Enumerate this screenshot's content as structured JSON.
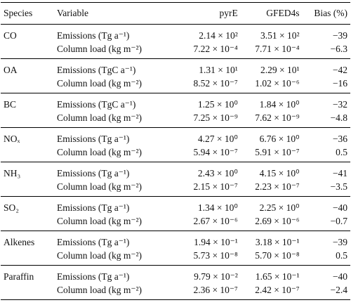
{
  "table": {
    "header": [
      "Species",
      "Variable",
      "pyrE",
      "GFED4s",
      "Bias (%)"
    ],
    "groups": [
      {
        "species": "CO",
        "rows": [
          {
            "variable": "Emissions (Tg a⁻¹)",
            "pyre": "2.14 × 10²",
            "gfed": "3.51 × 10²",
            "bias": "−39"
          },
          {
            "variable": "Column load (kg m⁻²)",
            "pyre": "7.22 × 10⁻⁴",
            "gfed": "7.71 × 10⁻⁴",
            "bias": "−6.3"
          }
        ]
      },
      {
        "species": "OA",
        "rows": [
          {
            "variable": "Emissions (TgC a⁻¹)",
            "pyre": "1.31 × 10¹",
            "gfed": "2.29 × 10¹",
            "bias": "−42"
          },
          {
            "variable": "Column load (kg m⁻²)",
            "pyre": "8.52 × 10⁻⁷",
            "gfed": "1.02 × 10⁻⁶",
            "bias": "−16"
          }
        ]
      },
      {
        "species": "BC",
        "rows": [
          {
            "variable": "Emissions (TgC a⁻¹)",
            "pyre": "1.25 × 10⁰",
            "gfed": "1.84 × 10⁰",
            "bias": "−32"
          },
          {
            "variable": "Column load (kg m⁻²)",
            "pyre": "7.25 × 10⁻⁹",
            "gfed": "7.62 × 10⁻⁹",
            "bias": "−4.8"
          }
        ]
      },
      {
        "species": "NOₓ",
        "rows": [
          {
            "variable": "Emissions (Tg a⁻¹)",
            "pyre": "4.27 × 10⁰",
            "gfed": "6.76 × 10⁰",
            "bias": "−36"
          },
          {
            "variable": "Column load (kg m⁻²)",
            "pyre": "5.94 × 10⁻⁷",
            "gfed": "5.91 × 10⁻⁷",
            "bias": "0.5"
          }
        ]
      },
      {
        "species": "NH₃",
        "rows": [
          {
            "variable": "Emissions (Tg a⁻¹)",
            "pyre": "2.43 × 10⁰",
            "gfed": "4.15 × 10⁰",
            "bias": "−41"
          },
          {
            "variable": "Column load (kg m⁻²)",
            "pyre": "2.15 × 10⁻⁷",
            "gfed": "2.23 × 10⁻⁷",
            "bias": "−3.5"
          }
        ]
      },
      {
        "species": "SO₂",
        "rows": [
          {
            "variable": "Emissions (Tg a⁻¹)",
            "pyre": "1.34 × 10⁰",
            "gfed": "2.25 × 10⁰",
            "bias": "−40"
          },
          {
            "variable": "Column load (kg m⁻²)",
            "pyre": "2.67 × 10⁻⁶",
            "gfed": "2.69 × 10⁻⁶",
            "bias": "−0.7"
          }
        ]
      },
      {
        "species": "Alkenes",
        "rows": [
          {
            "variable": "Emissions (Tg a⁻¹)",
            "pyre": "1.94 × 10⁻¹",
            "gfed": "3.18 × 10⁻¹",
            "bias": "−39"
          },
          {
            "variable": "Column load (kg m⁻²)",
            "pyre": "5.73 × 10⁻⁸",
            "gfed": "5.70 × 10⁻⁸",
            "bias": "0.5"
          }
        ]
      },
      {
        "species": "Paraffin",
        "rows": [
          {
            "variable": "Emissions (Tg a⁻¹)",
            "pyre": "9.79 × 10⁻²",
            "gfed": "1.65 × 10⁻¹",
            "bias": "−40"
          },
          {
            "variable": "Column load (kg m⁻²)",
            "pyre": "2.36 × 10⁻⁷",
            "gfed": "2.42 × 10⁻⁷",
            "bias": "−2.4"
          }
        ]
      }
    ]
  }
}
